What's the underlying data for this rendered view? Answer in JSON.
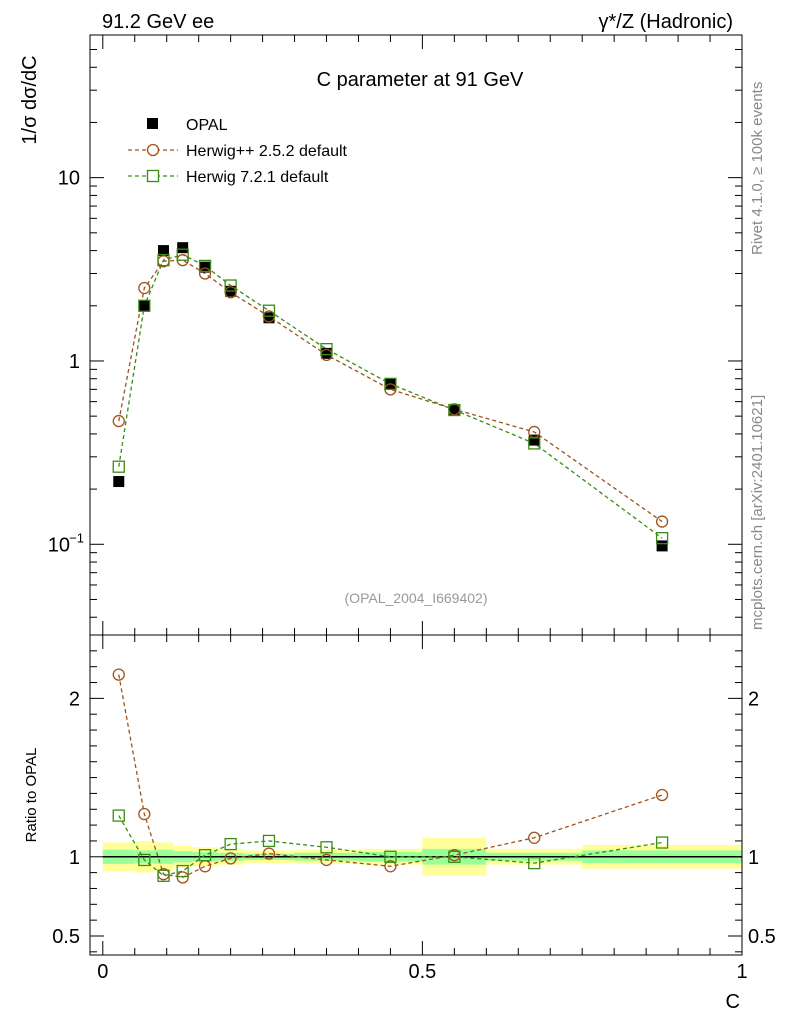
{
  "header": {
    "left": "91.2 GeV ee",
    "right": "γ*/Z (Hadronic)"
  },
  "side_text": {
    "top": "Rivet 4.1.0, ≥ 100k events",
    "bottom": "mcplots.cern.ch [arXiv:2401.10621]"
  },
  "chart_data": [
    {
      "type": "scatter",
      "title": "C parameter at 91 GeV",
      "ylabel": "1/σ  dσ/dC",
      "xlabel": "C",
      "yscale": "log",
      "xlim": [
        -0.02,
        1.0
      ],
      "ylim": [
        0.032,
        60
      ],
      "yticks": [
        {
          "value": 0.1,
          "base": "10",
          "exp": "−1"
        },
        {
          "value": 1,
          "base": "1",
          "exp": ""
        },
        {
          "value": 10,
          "base": "10",
          "exp": ""
        }
      ],
      "watermark": "(OPAL_2004_I669402)",
      "legend": [
        "OPAL",
        "Herwig++ 2.5.2 default",
        "Herwig 7.2.1 default"
      ],
      "legend_position": "top-left",
      "x": [
        0.025,
        0.065,
        0.095,
        0.125,
        0.16,
        0.2,
        0.26,
        0.35,
        0.45,
        0.55,
        0.675,
        0.875
      ],
      "series": [
        {
          "name": "OPAL",
          "color": "#000000",
          "marker": "filled-square",
          "values": [
            0.22,
            2.0,
            4.0,
            4.15,
            3.25,
            2.4,
            1.72,
            1.1,
            0.75,
            0.54,
            0.37,
            0.098
          ]
        },
        {
          "name": "Herwig++ 2.5.2 default",
          "color": "#a0521a",
          "marker": "open-circle",
          "values": [
            0.47,
            2.5,
            3.5,
            3.55,
            3.0,
            2.37,
            1.75,
            1.08,
            0.7,
            0.545,
            0.41,
            0.133
          ]
        },
        {
          "name": "Herwig 7.2.1 default",
          "color": "#3a8c14",
          "marker": "open-square",
          "values": [
            0.265,
            2.0,
            3.55,
            3.8,
            3.3,
            2.58,
            1.88,
            1.16,
            0.75,
            0.54,
            0.355,
            0.108
          ]
        }
      ]
    },
    {
      "type": "scatter",
      "ylabel": "Ratio to OPAL",
      "xlabel": "C",
      "xlim": [
        -0.02,
        1.0
      ],
      "ylim": [
        0.38,
        2.4
      ],
      "yticks": [
        {
          "value": 0.5,
          "label": "0.5"
        },
        {
          "value": 1,
          "label": "1"
        },
        {
          "value": 2,
          "label": "2"
        }
      ],
      "xticks": [
        {
          "value": 0,
          "label": "0"
        },
        {
          "value": 0.5,
          "label": "0.5"
        },
        {
          "value": 1,
          "label": "1"
        }
      ],
      "band_edges": [
        0.0,
        0.05,
        0.08,
        0.11,
        0.14,
        0.18,
        0.22,
        0.3,
        0.4,
        0.5,
        0.6,
        0.75,
        1.0
      ],
      "band_inner": [
        0.045,
        0.04,
        0.045,
        0.035,
        0.03,
        0.025,
        0.02,
        0.025,
        0.03,
        0.05,
        0.025,
        0.04
      ],
      "band_outer": [
        0.09,
        0.1,
        0.09,
        0.07,
        0.06,
        0.05,
        0.04,
        0.045,
        0.05,
        0.12,
        0.05,
        0.075
      ],
      "x": [
        0.025,
        0.065,
        0.095,
        0.125,
        0.16,
        0.2,
        0.26,
        0.35,
        0.45,
        0.55,
        0.675,
        0.875
      ],
      "series": [
        {
          "name": "Herwig++ 2.5.2 default",
          "color": "#a0521a",
          "marker": "open-circle",
          "values": [
            2.15,
            1.27,
            0.89,
            0.87,
            0.94,
            0.99,
            1.02,
            0.98,
            0.94,
            1.01,
            1.12,
            1.39
          ]
        },
        {
          "name": "Herwig 7.2.1 default",
          "color": "#3a8c14",
          "marker": "open-square",
          "values": [
            1.26,
            0.98,
            0.88,
            0.91,
            1.01,
            1.08,
            1.1,
            1.06,
            1.0,
            1.0,
            0.96,
            1.09
          ]
        }
      ],
      "colors": {
        "inner_band": "#99ff99",
        "outer_band": "#ffff99",
        "reference": "#000000"
      }
    }
  ]
}
